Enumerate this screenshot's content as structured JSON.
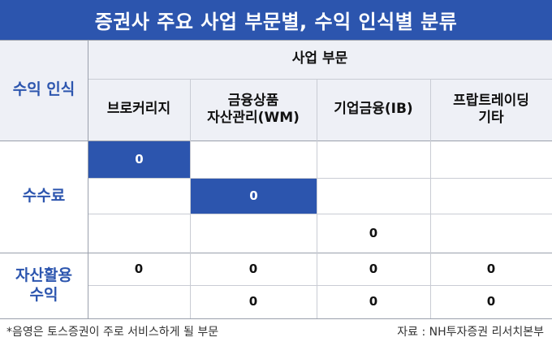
{
  "title": "증권사 주요 사업 부문별, 수익 인식별 분류",
  "header": {
    "group_label": "사업 부문",
    "row_label": "수익 인식",
    "columns": [
      "브로커리지",
      "금융상품\n자산관리(WM)",
      "기업금융(IB)",
      "프랍트레이딩\n기타"
    ]
  },
  "rows": [
    {
      "group": "수수료",
      "cells": [
        "0",
        "",
        "",
        ""
      ],
      "highlight": [
        true,
        false,
        false,
        false
      ]
    },
    {
      "group": "수수료",
      "cells": [
        "",
        "0",
        "",
        ""
      ],
      "highlight": [
        false,
        true,
        false,
        false
      ]
    },
    {
      "group": "수수료",
      "cells": [
        "",
        "",
        "0",
        ""
      ],
      "highlight": [
        false,
        false,
        false,
        false
      ]
    },
    {
      "group": "자산활용\n수익",
      "cells": [
        "0",
        "0",
        "0",
        "0"
      ],
      "highlight": [
        false,
        false,
        false,
        false
      ]
    },
    {
      "group": "자산활용\n수익",
      "cells": [
        "",
        "0",
        "0",
        "0"
      ],
      "highlight": [
        false,
        false,
        false,
        false
      ]
    }
  ],
  "row_groups": [
    "수수료",
    "자산활용\n수익"
  ],
  "footer": {
    "note": "*음영은 토스증권이 주로 서비스하게 될 부문",
    "source": "자료 : NH투자증권 리서치본부"
  },
  "colors": {
    "accent": "#2c55ae",
    "header_bg": "#eef0f6"
  }
}
